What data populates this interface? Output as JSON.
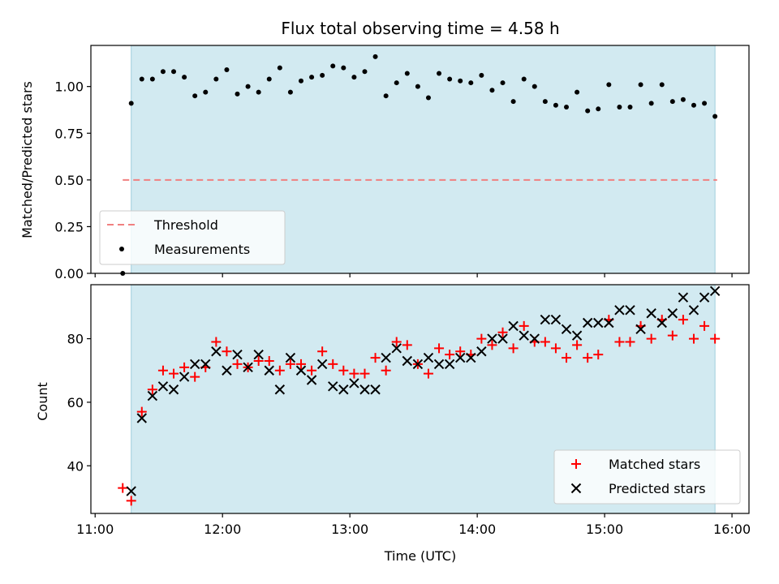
{
  "figure": {
    "title": "Flux total observing time = 4.58 h",
    "xlabel": "Time (UTC)"
  },
  "chart_data": [
    {
      "type": "scatter",
      "panel": "top",
      "ylabel": "Matched/Predicted stars",
      "xlim": [
        "10:58",
        "16:08"
      ],
      "ylim": [
        0,
        1.22
      ],
      "xticks": [
        "11:00",
        "12:00",
        "13:00",
        "14:00",
        "15:00",
        "16:00"
      ],
      "yticks": [
        0.0,
        0.25,
        0.5,
        0.75,
        1.0
      ],
      "ytick_labels": [
        "0.00",
        "0.25",
        "0.50",
        "0.75",
        "1.00"
      ],
      "shaded_interval": [
        "11:17",
        "15:52"
      ],
      "threshold": {
        "name": "Threshold",
        "y": 0.5,
        "x": [
          "11:13",
          "15:53"
        ],
        "color": "#f08080",
        "style": "dashed"
      },
      "series": [
        {
          "name": "Measurements",
          "color": "#000000",
          "marker": "dot",
          "x": [
            "11:13",
            "11:17",
            "11:22",
            "11:27",
            "11:32",
            "11:37",
            "11:42",
            "11:47",
            "11:52",
            "11:57",
            "12:02",
            "12:07",
            "12:12",
            "12:17",
            "12:22",
            "12:27",
            "12:32",
            "12:37",
            "12:42",
            "12:47",
            "12:52",
            "12:57",
            "13:02",
            "13:07",
            "13:12",
            "13:17",
            "13:22",
            "13:27",
            "13:32",
            "13:37",
            "13:42",
            "13:47",
            "13:52",
            "13:57",
            "14:02",
            "14:07",
            "14:12",
            "14:17",
            "14:22",
            "14:27",
            "14:32",
            "14:37",
            "14:42",
            "14:47",
            "14:52",
            "14:57",
            "15:02",
            "15:07",
            "15:12",
            "15:17",
            "15:22",
            "15:27",
            "15:32",
            "15:37",
            "15:42",
            "15:47",
            "15:52"
          ],
          "y": [
            0.0,
            0.91,
            1.04,
            1.04,
            1.08,
            1.08,
            1.05,
            0.95,
            0.97,
            1.04,
            1.09,
            0.96,
            1.0,
            0.97,
            1.04,
            1.1,
            0.97,
            1.03,
            1.05,
            1.06,
            1.11,
            1.1,
            1.05,
            1.08,
            1.16,
            0.95,
            1.02,
            1.07,
            1.0,
            0.94,
            1.07,
            1.04,
            1.03,
            1.02,
            1.06,
            0.98,
            1.02,
            0.92,
            1.04,
            1.0,
            0.92,
            0.9,
            0.89,
            0.97,
            0.87,
            0.88,
            1.01,
            0.89,
            0.89,
            1.01,
            0.91,
            1.01,
            0.92,
            0.93,
            0.9,
            0.91,
            0.84
          ]
        }
      ],
      "legend": {
        "location": "lower left",
        "entries": [
          "Threshold",
          "Measurements"
        ]
      }
    },
    {
      "type": "scatter",
      "panel": "bottom",
      "ylabel": "Count",
      "xlim": [
        "10:58",
        "16:08"
      ],
      "ylim": [
        25,
        97
      ],
      "xticks": [
        "11:00",
        "12:00",
        "13:00",
        "14:00",
        "15:00",
        "16:00"
      ],
      "yticks": [
        40,
        60,
        80
      ],
      "shaded_interval": [
        "11:17",
        "15:52"
      ],
      "series": [
        {
          "name": "Matched stars",
          "color": "#ff0000",
          "marker": "plus",
          "x": [
            "11:13",
            "11:17",
            "11:22",
            "11:27",
            "11:32",
            "11:37",
            "11:42",
            "11:47",
            "11:52",
            "11:57",
            "12:02",
            "12:07",
            "12:12",
            "12:17",
            "12:22",
            "12:27",
            "12:32",
            "12:37",
            "12:42",
            "12:47",
            "12:52",
            "12:57",
            "13:02",
            "13:07",
            "13:12",
            "13:17",
            "13:22",
            "13:27",
            "13:32",
            "13:37",
            "13:42",
            "13:47",
            "13:52",
            "13:57",
            "14:02",
            "14:07",
            "14:12",
            "14:17",
            "14:22",
            "14:27",
            "14:32",
            "14:37",
            "14:42",
            "14:47",
            "14:52",
            "14:57",
            "15:02",
            "15:07",
            "15:12",
            "15:17",
            "15:22",
            "15:27",
            "15:32",
            "15:37",
            "15:42",
            "15:47",
            "15:52"
          ],
          "y": [
            33,
            29,
            57,
            64,
            70,
            69,
            71,
            68,
            71,
            79,
            76,
            72,
            71,
            73,
            73,
            70,
            72,
            72,
            70,
            76,
            72,
            70,
            69,
            69,
            74,
            70,
            79,
            78,
            72,
            69,
            77,
            75,
            76,
            75,
            80,
            78,
            82,
            77,
            84,
            79,
            79,
            77,
            74,
            78,
            74,
            75,
            86,
            79,
            79,
            84,
            80,
            86,
            81,
            86,
            80,
            84,
            80
          ]
        },
        {
          "name": "Predicted stars",
          "color": "#000000",
          "marker": "x",
          "x": [
            "11:17",
            "11:22",
            "11:27",
            "11:32",
            "11:37",
            "11:42",
            "11:47",
            "11:52",
            "11:57",
            "12:02",
            "12:07",
            "12:12",
            "12:17",
            "12:22",
            "12:27",
            "12:32",
            "12:37",
            "12:42",
            "12:47",
            "12:52",
            "12:57",
            "13:02",
            "13:07",
            "13:12",
            "13:17",
            "13:22",
            "13:27",
            "13:32",
            "13:37",
            "13:42",
            "13:47",
            "13:52",
            "13:57",
            "14:02",
            "14:07",
            "14:12",
            "14:17",
            "14:22",
            "14:27",
            "14:32",
            "14:37",
            "14:42",
            "14:47",
            "14:52",
            "14:57",
            "15:02",
            "15:07",
            "15:12",
            "15:17",
            "15:22",
            "15:27",
            "15:32",
            "15:37",
            "15:42",
            "15:47",
            "15:52"
          ],
          "y": [
            32,
            55,
            62,
            65,
            64,
            68,
            72,
            72,
            76,
            70,
            75,
            71,
            75,
            70,
            64,
            74,
            70,
            67,
            72,
            65,
            64,
            66,
            64,
            64,
            74,
            77,
            73,
            72,
            74,
            72,
            72,
            74,
            74,
            76,
            80,
            80,
            84,
            81,
            80,
            86,
            86,
            83,
            81,
            85,
            85,
            85,
            89,
            89,
            83,
            88,
            85,
            88,
            93,
            89,
            93,
            95
          ]
        }
      ],
      "legend": {
        "location": "lower right",
        "entries": [
          "Matched stars",
          "Predicted stars"
        ]
      }
    }
  ]
}
